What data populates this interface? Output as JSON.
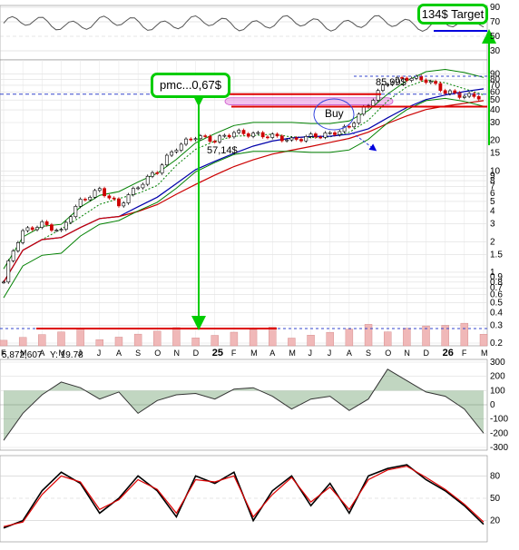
{
  "annotations": {
    "target_box": "134$ Target",
    "pmc_box": "pmc...0,67$",
    "buy_label": "Buy",
    "level_low_high": "57,14$",
    "level_high": "85,99$"
  },
  "volume_info": {
    "left_value": "5,872,607",
    "y_label": "Y: 19.78"
  },
  "colors": {
    "price_up": "#000000",
    "price_down": "#cc0000",
    "sma_fast": "#008000",
    "sma_slow": "#0000aa",
    "sma_long": "#cc0000",
    "bollinger": "#008000",
    "consolidation_fill": "#e890e0",
    "callout_border": "#00cc00",
    "arrow": "#00cc00",
    "volume_bar": "#f0b8b8",
    "cci_positive": "#4e8a4e",
    "cci_negative": "#8a3a3a",
    "stoch_k": "#000000",
    "stoch_d": "#dd0000"
  },
  "chart_data": [
    {
      "type": "line",
      "panel": "top indicator",
      "right_ticks": [
        90,
        70,
        50,
        30
      ],
      "note": "indicator oscillating roughly between 60 and 80"
    },
    {
      "type": "line",
      "panel": "price",
      "scale": "log",
      "x_ticks": [
        "F",
        "M",
        "A",
        "M",
        "J",
        "J",
        "A",
        "S",
        "O",
        "N",
        "D",
        "25",
        "F",
        "M",
        "A",
        "M",
        "J",
        "J",
        "A",
        "S",
        "O",
        "N",
        "D",
        "26",
        "F",
        "M"
      ],
      "y_ticks": [
        90,
        80,
        70,
        60,
        50,
        40,
        30,
        20,
        15,
        10,
        9,
        8,
        7,
        6,
        5,
        4,
        3,
        2,
        1.5,
        1,
        0.9,
        0.8,
        0.7,
        0.6,
        0.5,
        0.4,
        0.3,
        0.2
      ],
      "x": [
        "F",
        "M",
        "A",
        "M",
        "J",
        "J",
        "A",
        "S",
        "O",
        "N",
        "D",
        "25",
        "F",
        "M",
        "A",
        "M",
        "J",
        "J",
        "A",
        "S",
        "O",
        "N",
        "D",
        "26",
        "F",
        "M"
      ],
      "series": [
        {
          "name": "",
          "values": [
            0.8,
            2.5,
            3,
            2.5,
            5,
            6.5,
            4.5,
            7,
            10,
            17,
            22,
            20,
            24,
            23,
            22,
            20,
            22,
            23,
            27,
            45,
            75,
            83,
            79,
            60,
            55,
            54
          ]
        }
      ],
      "levels": [
        57.14,
        85.99,
        134
      ]
    },
    {
      "type": "line",
      "panel": "CCI",
      "y_ticks": [
        300,
        200,
        100,
        0,
        -100,
        -200,
        -300
      ],
      "series": [
        {
          "name": "",
          "values": [
            -250,
            -60,
            70,
            160,
            120,
            40,
            90,
            -60,
            30,
            70,
            80,
            40,
            110,
            120,
            60,
            -30,
            40,
            60,
            -40,
            40,
            250,
            170,
            90,
            60,
            -30,
            -200
          ]
        }
      ]
    },
    {
      "type": "line",
      "panel": "stochastic",
      "y_ticks": [
        80,
        50,
        20
      ],
      "series": [
        {
          "name": "",
          "values": [
            10,
            20,
            60,
            85,
            70,
            30,
            50,
            80,
            60,
            25,
            80,
            70,
            85,
            20,
            60,
            80,
            40,
            70,
            30,
            80,
            90,
            95,
            75,
            60,
            40,
            15
          ]
        },
        {
          "name": "",
          "values": [
            12,
            18,
            55,
            80,
            72,
            35,
            48,
            75,
            62,
            30,
            75,
            72,
            80,
            25,
            55,
            78,
            45,
            65,
            35,
            75,
            88,
            93,
            78,
            62,
            42,
            18
          ]
        }
      ]
    }
  ]
}
